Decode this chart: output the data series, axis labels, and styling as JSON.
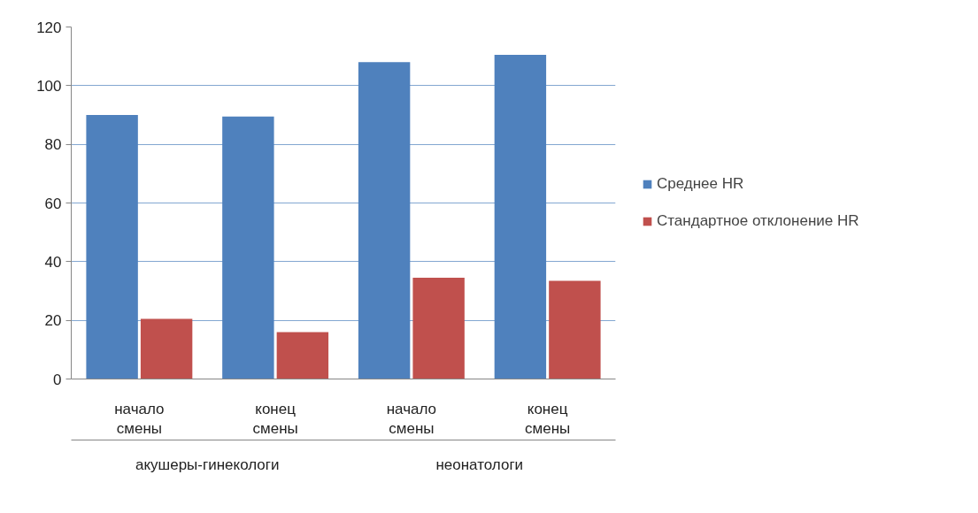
{
  "chart_data": {
    "type": "bar",
    "categories": [
      "начало смены",
      "конец смены",
      "начало смены",
      "конец смены"
    ],
    "series": [
      {
        "name": "Среднее HR",
        "color": "#4f81bd",
        "values": [
          90,
          89.5,
          108,
          110.5
        ]
      },
      {
        "name": "Стандартное отклонение HR",
        "color": "#c0504d",
        "values": [
          20.5,
          16,
          34.5,
          33.5
        ]
      }
    ],
    "ylim": [
      0,
      120
    ],
    "yticks": [
      0,
      20,
      40,
      60,
      80,
      100,
      120
    ],
    "grid": "y",
    "legend": "right",
    "annotations": [
      "акушеры-гинекологи",
      "неонатологи"
    ]
  }
}
